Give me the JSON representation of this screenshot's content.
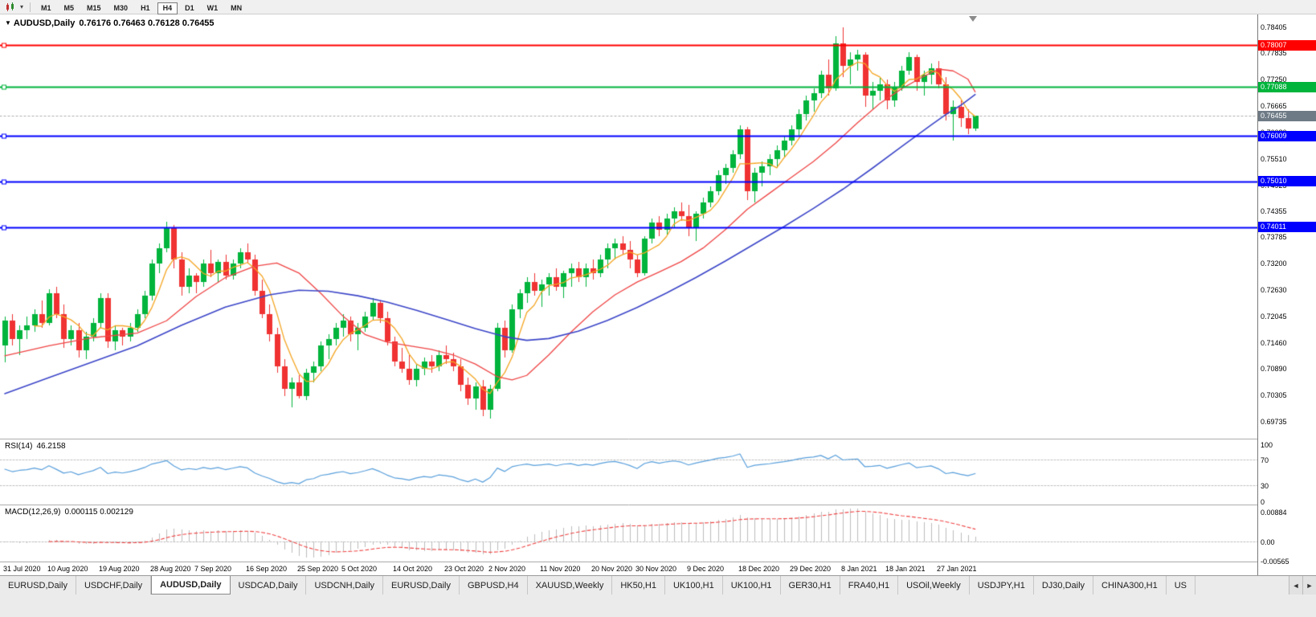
{
  "toolbar": {
    "timeframes": [
      {
        "label": "M1",
        "active": false
      },
      {
        "label": "M5",
        "active": false
      },
      {
        "label": "M15",
        "active": false
      },
      {
        "label": "M30",
        "active": false
      },
      {
        "label": "H1",
        "active": false
      },
      {
        "label": "H4",
        "active": true
      },
      {
        "label": "D1",
        "active": false
      },
      {
        "label": "W1",
        "active": false
      },
      {
        "label": "MN",
        "active": false
      }
    ],
    "icons": [
      "candlestick-chart-icon",
      "caret-down-icon"
    ]
  },
  "chart": {
    "title": "AUDUSD,Daily",
    "ohlc_text": "0.76176 0.76463 0.76128 0.76455"
  },
  "chart_data": {
    "type": "candlestick",
    "symbol": "AUDUSD",
    "period": "Daily",
    "last_ohlc": {
      "open": 0.76176,
      "high": 0.76463,
      "low": 0.76128,
      "close": 0.76455
    },
    "bull_color": "#00B43C",
    "bear_color": "#F03232",
    "price_range": {
      "max": 0.7868,
      "min": 0.6936
    },
    "price_axis_ticks": [
      0.78405,
      0.77835,
      0.7725,
      0.76665,
      0.7608,
      0.7551,
      0.74925,
      0.74355,
      0.73785,
      0.732,
      0.7263,
      0.72045,
      0.7146,
      0.7089,
      0.70305,
      0.69735
    ],
    "x_axis": {
      "tick_indices": [
        0,
        6,
        13,
        20,
        26,
        33,
        40,
        46,
        53,
        60,
        66,
        73,
        80,
        86,
        93,
        100,
        107,
        114,
        120,
        127
      ],
      "tick_labels": [
        "31 Jul 2020",
        "10 Aug 2020",
        "19 Aug 2020",
        "28 Aug 2020",
        "7 Sep 2020",
        "16 Sep 2020",
        "25 Sep 2020",
        "5 Oct 2020",
        "14 Oct 2020",
        "23 Oct 2020",
        "2 Nov 2020",
        "11 Nov 2020",
        "20 Nov 2020",
        "30 Nov 2020",
        "9 Dec 2020",
        "18 Dec 2020",
        "29 Dec 2020",
        "8 Jan 2021",
        "18 Jan 2021",
        "27 Jan 2021"
      ]
    },
    "candles": [
      [
        0.714,
        0.7205,
        0.7103,
        0.7195
      ],
      [
        0.7195,
        0.721,
        0.714,
        0.7155
      ],
      [
        0.7155,
        0.7185,
        0.712,
        0.7175
      ],
      [
        0.7175,
        0.7205,
        0.7155,
        0.7185
      ],
      [
        0.7185,
        0.722,
        0.717,
        0.721
      ],
      [
        0.721,
        0.724,
        0.718,
        0.719
      ],
      [
        0.719,
        0.7265,
        0.7185,
        0.7255
      ],
      [
        0.7255,
        0.727,
        0.72,
        0.721
      ],
      [
        0.721,
        0.723,
        0.7135,
        0.7155
      ],
      [
        0.7155,
        0.7185,
        0.714,
        0.7175
      ],
      [
        0.7175,
        0.719,
        0.7115,
        0.713
      ],
      [
        0.713,
        0.717,
        0.711,
        0.716
      ],
      [
        0.716,
        0.72,
        0.715,
        0.719
      ],
      [
        0.719,
        0.7255,
        0.718,
        0.7245
      ],
      [
        0.7245,
        0.7255,
        0.7135,
        0.715
      ],
      [
        0.715,
        0.7185,
        0.713,
        0.7175
      ],
      [
        0.7175,
        0.718,
        0.714,
        0.716
      ],
      [
        0.716,
        0.719,
        0.715,
        0.718
      ],
      [
        0.718,
        0.722,
        0.717,
        0.721
      ],
      [
        0.721,
        0.726,
        0.72,
        0.725
      ],
      [
        0.725,
        0.733,
        0.724,
        0.732
      ],
      [
        0.732,
        0.7365,
        0.73,
        0.7355
      ],
      [
        0.7355,
        0.7413,
        0.7345,
        0.74
      ],
      [
        0.74,
        0.7405,
        0.731,
        0.733
      ],
      [
        0.733,
        0.7345,
        0.725,
        0.727
      ],
      [
        0.727,
        0.731,
        0.7255,
        0.7295
      ],
      [
        0.7295,
        0.73,
        0.7255,
        0.728
      ],
      [
        0.728,
        0.733,
        0.727,
        0.732
      ],
      [
        0.732,
        0.735,
        0.729,
        0.73
      ],
      [
        0.73,
        0.733,
        0.728,
        0.7325
      ],
      [
        0.7325,
        0.734,
        0.7285,
        0.7295
      ],
      [
        0.7295,
        0.733,
        0.7285,
        0.732
      ],
      [
        0.732,
        0.7355,
        0.731,
        0.7345
      ],
      [
        0.7345,
        0.7365,
        0.732,
        0.733
      ],
      [
        0.733,
        0.734,
        0.725,
        0.726
      ],
      [
        0.726,
        0.7285,
        0.72,
        0.721
      ],
      [
        0.721,
        0.723,
        0.715,
        0.7165
      ],
      [
        0.7165,
        0.718,
        0.708,
        0.7095
      ],
      [
        0.7095,
        0.711,
        0.703,
        0.7045
      ],
      [
        0.7045,
        0.707,
        0.7005,
        0.706
      ],
      [
        0.706,
        0.7075,
        0.7025,
        0.703
      ],
      [
        0.703,
        0.709,
        0.702,
        0.708
      ],
      [
        0.708,
        0.7105,
        0.706,
        0.7095
      ],
      [
        0.7095,
        0.715,
        0.7085,
        0.714
      ],
      [
        0.714,
        0.7165,
        0.711,
        0.7155
      ],
      [
        0.7155,
        0.719,
        0.714,
        0.718
      ],
      [
        0.718,
        0.721,
        0.716,
        0.7195
      ],
      [
        0.7195,
        0.7205,
        0.715,
        0.7165
      ],
      [
        0.7165,
        0.719,
        0.713,
        0.718
      ],
      [
        0.718,
        0.7215,
        0.717,
        0.7205
      ],
      [
        0.7205,
        0.7245,
        0.7195,
        0.7235
      ],
      [
        0.7235,
        0.724,
        0.719,
        0.72
      ],
      [
        0.72,
        0.7215,
        0.714,
        0.715
      ],
      [
        0.715,
        0.716,
        0.7095,
        0.7105
      ],
      [
        0.7105,
        0.7135,
        0.708,
        0.709
      ],
      [
        0.709,
        0.712,
        0.7055,
        0.7065
      ],
      [
        0.7065,
        0.71,
        0.705,
        0.709
      ],
      [
        0.709,
        0.7115,
        0.7075,
        0.7105
      ],
      [
        0.7105,
        0.712,
        0.708,
        0.7095
      ],
      [
        0.7095,
        0.713,
        0.7085,
        0.712
      ],
      [
        0.712,
        0.714,
        0.71,
        0.711
      ],
      [
        0.711,
        0.7125,
        0.7085,
        0.7095
      ],
      [
        0.7095,
        0.711,
        0.704,
        0.7055
      ],
      [
        0.7055,
        0.707,
        0.701,
        0.7025
      ],
      [
        0.7025,
        0.706,
        0.7,
        0.705
      ],
      [
        0.705,
        0.7065,
        0.6985,
        0.7
      ],
      [
        0.7,
        0.7055,
        0.698,
        0.7045
      ],
      [
        0.7045,
        0.719,
        0.704,
        0.718
      ],
      [
        0.718,
        0.7195,
        0.7115,
        0.713
      ],
      [
        0.713,
        0.723,
        0.7125,
        0.722
      ],
      [
        0.722,
        0.7265,
        0.72,
        0.7255
      ],
      [
        0.7255,
        0.729,
        0.7235,
        0.728
      ],
      [
        0.728,
        0.73,
        0.725,
        0.726
      ],
      [
        0.726,
        0.7285,
        0.7225,
        0.7275
      ],
      [
        0.7275,
        0.73,
        0.725,
        0.729
      ],
      [
        0.729,
        0.731,
        0.726,
        0.727
      ],
      [
        0.727,
        0.7305,
        0.7245,
        0.73
      ],
      [
        0.73,
        0.732,
        0.727,
        0.731
      ],
      [
        0.731,
        0.7325,
        0.728,
        0.729
      ],
      [
        0.729,
        0.732,
        0.727,
        0.731
      ],
      [
        0.731,
        0.733,
        0.7285,
        0.73
      ],
      [
        0.73,
        0.734,
        0.729,
        0.733
      ],
      [
        0.733,
        0.7365,
        0.731,
        0.7355
      ],
      [
        0.7355,
        0.7375,
        0.733,
        0.7365
      ],
      [
        0.7365,
        0.738,
        0.734,
        0.735
      ],
      [
        0.735,
        0.737,
        0.731,
        0.733
      ],
      [
        0.733,
        0.734,
        0.729,
        0.73
      ],
      [
        0.73,
        0.738,
        0.7295,
        0.7375
      ],
      [
        0.7375,
        0.742,
        0.7365,
        0.741
      ],
      [
        0.741,
        0.7425,
        0.738,
        0.7395
      ],
      [
        0.7395,
        0.743,
        0.7385,
        0.742
      ],
      [
        0.742,
        0.7445,
        0.74,
        0.7435
      ],
      [
        0.7435,
        0.7455,
        0.7415,
        0.7425
      ],
      [
        0.7425,
        0.745,
        0.738,
        0.74
      ],
      [
        0.74,
        0.7435,
        0.737,
        0.743
      ],
      [
        0.743,
        0.7465,
        0.742,
        0.7455
      ],
      [
        0.7455,
        0.749,
        0.7445,
        0.748
      ],
      [
        0.748,
        0.7525,
        0.747,
        0.7515
      ],
      [
        0.7515,
        0.754,
        0.7495,
        0.753
      ],
      [
        0.753,
        0.757,
        0.752,
        0.756
      ],
      [
        0.756,
        0.7625,
        0.755,
        0.7615
      ],
      [
        0.7615,
        0.762,
        0.746,
        0.748
      ],
      [
        0.748,
        0.753,
        0.7455,
        0.752
      ],
      [
        0.752,
        0.7545,
        0.749,
        0.7535
      ],
      [
        0.7535,
        0.756,
        0.7515,
        0.755
      ],
      [
        0.755,
        0.758,
        0.753,
        0.757
      ],
      [
        0.757,
        0.76,
        0.7555,
        0.759
      ],
      [
        0.759,
        0.7625,
        0.758,
        0.7615
      ],
      [
        0.7615,
        0.766,
        0.76,
        0.765
      ],
      [
        0.765,
        0.769,
        0.7635,
        0.768
      ],
      [
        0.768,
        0.7705,
        0.7655,
        0.7695
      ],
      [
        0.7695,
        0.7745,
        0.7685,
        0.7735
      ],
      [
        0.7735,
        0.777,
        0.769,
        0.7705
      ],
      [
        0.7705,
        0.782,
        0.77,
        0.7805
      ],
      [
        0.7805,
        0.784,
        0.773,
        0.7755
      ],
      [
        0.7755,
        0.7785,
        0.7715,
        0.777
      ],
      [
        0.777,
        0.779,
        0.7745,
        0.778
      ],
      [
        0.778,
        0.7785,
        0.7665,
        0.769
      ],
      [
        0.769,
        0.772,
        0.766,
        0.77
      ],
      [
        0.77,
        0.773,
        0.768,
        0.7715
      ],
      [
        0.7715,
        0.7725,
        0.766,
        0.768
      ],
      [
        0.768,
        0.772,
        0.7665,
        0.771
      ],
      [
        0.771,
        0.7755,
        0.77,
        0.7745
      ],
      [
        0.7745,
        0.7785,
        0.7735,
        0.7775
      ],
      [
        0.7775,
        0.778,
        0.77,
        0.772
      ],
      [
        0.772,
        0.7745,
        0.769,
        0.7735
      ],
      [
        0.7735,
        0.776,
        0.7715,
        0.775
      ],
      [
        0.775,
        0.7765,
        0.7705,
        0.7715
      ],
      [
        0.7715,
        0.773,
        0.7635,
        0.765
      ],
      [
        0.765,
        0.768,
        0.759,
        0.7665
      ],
      [
        0.7665,
        0.768,
        0.762,
        0.764
      ],
      [
        0.764,
        0.766,
        0.7605,
        0.7618
      ],
      [
        0.76176,
        0.76463,
        0.76128,
        0.76455
      ]
    ],
    "moving_averages": [
      {
        "name": "ma-fast",
        "color": "#F5A623",
        "period": 5,
        "source": "computed"
      },
      {
        "name": "ma-medium",
        "color": "#F04545",
        "points": [
          [
            0,
            0.7118
          ],
          [
            6,
            0.714
          ],
          [
            12,
            0.7158
          ],
          [
            18,
            0.7168
          ],
          [
            22,
            0.7195
          ],
          [
            26,
            0.7248
          ],
          [
            30,
            0.729
          ],
          [
            34,
            0.7315
          ],
          [
            37,
            0.7322
          ],
          [
            40,
            0.73
          ],
          [
            43,
            0.7255
          ],
          [
            46,
            0.7205
          ],
          [
            49,
            0.7165
          ],
          [
            52,
            0.7148
          ],
          [
            55,
            0.714
          ],
          [
            58,
            0.7132
          ],
          [
            61,
            0.712
          ],
          [
            64,
            0.71
          ],
          [
            67,
            0.7072
          ],
          [
            69,
            0.7065
          ],
          [
            71,
            0.7075
          ],
          [
            74,
            0.712
          ],
          [
            77,
            0.717
          ],
          [
            80,
            0.7215
          ],
          [
            83,
            0.7252
          ],
          [
            86,
            0.728
          ],
          [
            89,
            0.7302
          ],
          [
            92,
            0.7325
          ],
          [
            95,
            0.7355
          ],
          [
            98,
            0.7395
          ],
          [
            101,
            0.744
          ],
          [
            104,
            0.7475
          ],
          [
            107,
            0.751
          ],
          [
            110,
            0.7545
          ],
          [
            113,
            0.7585
          ],
          [
            116,
            0.763
          ],
          [
            119,
            0.7672
          ],
          [
            122,
            0.7705
          ],
          [
            125,
            0.7732
          ],
          [
            127,
            0.7748
          ],
          [
            129,
            0.7744
          ],
          [
            131,
            0.7726
          ],
          [
            132,
            0.7698
          ]
        ]
      },
      {
        "name": "ma-slow",
        "color": "#3C46C8",
        "points": [
          [
            0,
            0.7035
          ],
          [
            6,
            0.707
          ],
          [
            12,
            0.7105
          ],
          [
            18,
            0.714
          ],
          [
            24,
            0.7185
          ],
          [
            30,
            0.7225
          ],
          [
            36,
            0.7252
          ],
          [
            40,
            0.7262
          ],
          [
            44,
            0.726
          ],
          [
            48,
            0.725
          ],
          [
            52,
            0.7236
          ],
          [
            56,
            0.7218
          ],
          [
            60,
            0.7198
          ],
          [
            64,
            0.7178
          ],
          [
            68,
            0.716
          ],
          [
            71,
            0.7152
          ],
          [
            74,
            0.7156
          ],
          [
            78,
            0.7172
          ],
          [
            82,
            0.7196
          ],
          [
            86,
            0.7224
          ],
          [
            90,
            0.7256
          ],
          [
            94,
            0.729
          ],
          [
            98,
            0.7326
          ],
          [
            102,
            0.7364
          ],
          [
            106,
            0.7402
          ],
          [
            110,
            0.7442
          ],
          [
            114,
            0.7484
          ],
          [
            118,
            0.753
          ],
          [
            122,
            0.7578
          ],
          [
            126,
            0.7625
          ],
          [
            128,
            0.7648
          ],
          [
            130,
            0.7668
          ],
          [
            132,
            0.7692
          ]
        ]
      }
    ],
    "horizontal_lines": [
      {
        "price": 0.78007,
        "label": "0.78007",
        "color": "#FF0000"
      },
      {
        "price": 0.77088,
        "label": "0.77088",
        "color": "#00B43C"
      },
      {
        "price": 0.76009,
        "label": "0.76009",
        "color": "#0000FF"
      },
      {
        "price": 0.7501,
        "label": "0.75010",
        "color": "#0000FF"
      },
      {
        "price": 0.74011,
        "label": "0.74011",
        "color": "#0000FF"
      }
    ],
    "current_price": {
      "value": 0.76455,
      "label": "0.76455",
      "color": "#6E7B86"
    },
    "rsi": {
      "label": "RSI(14)",
      "value_text": "46.2158",
      "period": 14,
      "color": "#5AA0DC",
      "axis_ticks": [
        100,
        70,
        30,
        0
      ],
      "level_lines": [
        70,
        30
      ],
      "range": [
        0,
        100
      ]
    },
    "macd": {
      "label": "MACD(12,26,9)",
      "value_text": "0.000115 0.002129",
      "fast": 12,
      "slow": 26,
      "signal": 9,
      "hist_color": "#BDBDBD",
      "signal_color": "#F04545",
      "axis_ticks": [
        {
          "label": "0.00884",
          "value": 0.00884
        },
        {
          "label": "0.00",
          "value": 0
        },
        {
          "label": "-0.00565",
          "value": -0.00565
        }
      ],
      "range": [
        0.0105,
        -0.0062
      ]
    }
  },
  "tabs": {
    "items": [
      "EURUSD,Daily",
      "USDCHF,Daily",
      "AUDUSD,Daily",
      "USDCAD,Daily",
      "USDCNH,Daily",
      "EURUSD,Daily",
      "GBPUSD,H4",
      "XAUUSD,Weekly",
      "HK50,H1",
      "UK100,H1",
      "UK100,H1",
      "GER30,H1",
      "FRA40,H1",
      "USOil,Weekly",
      "USDJPY,H1",
      "DJ30,Daily",
      "CHINA300,H1",
      "US"
    ],
    "active_index": 2,
    "scroll_icons": [
      "arrow-left-icon",
      "arrow-right-icon"
    ]
  }
}
